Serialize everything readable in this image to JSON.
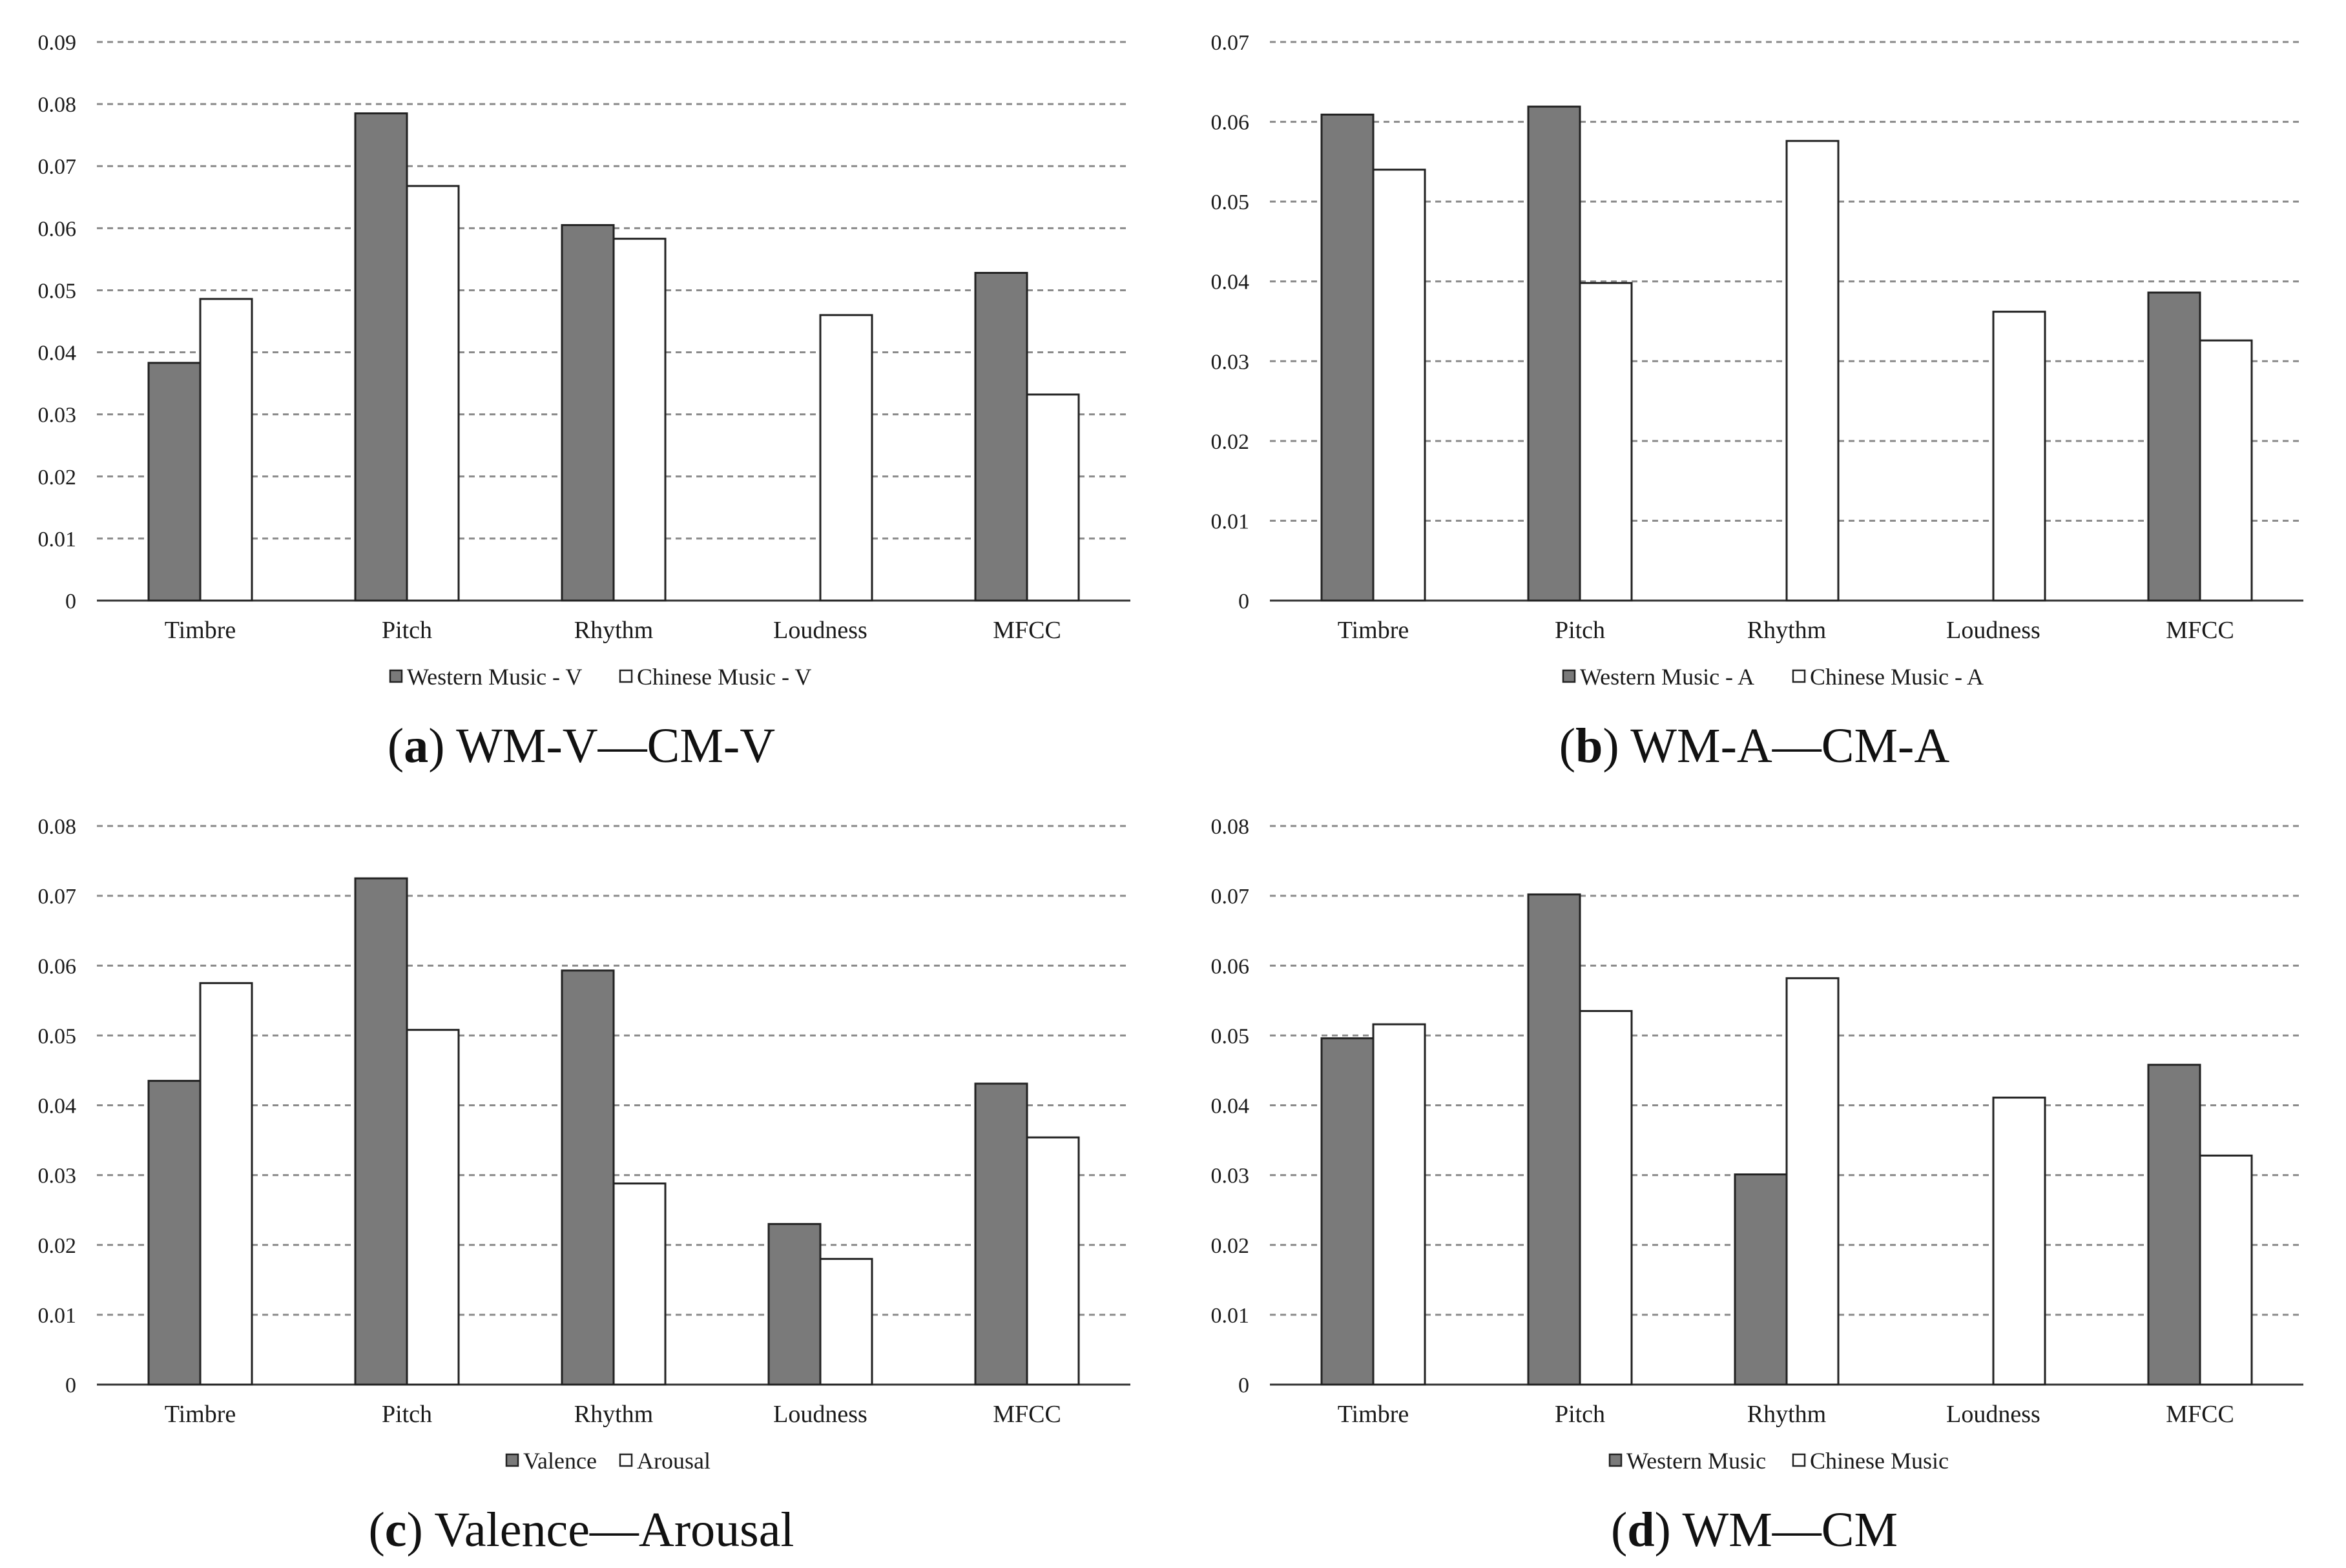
{
  "colors": {
    "dark_bar": "#7a7a7a",
    "light_bar": "#ffffff",
    "bar_stroke": "#222222"
  },
  "chart_data": [
    {
      "type": "bar",
      "caption": {
        "letter": "a",
        "text": "WM-V—CM-V"
      },
      "categories": [
        "Timbre",
        "Pitch",
        "Rhythm",
        "Loudness",
        "MFCC"
      ],
      "series": [
        {
          "name": "Western Music - V",
          "values": [
            0.0383,
            0.0785,
            0.0605,
            0,
            0.0528
          ]
        },
        {
          "name": "Chinese Music - V",
          "values": [
            0.0486,
            0.0668,
            0.0583,
            0.046,
            0.0332
          ]
        }
      ],
      "ylim": [
        0,
        0.09
      ],
      "yticks": [
        "0",
        "0.01",
        "0.02",
        "0.03",
        "0.04",
        "0.05",
        "0.06",
        "0.07",
        "0.08",
        "0.09"
      ],
      "grid": true,
      "legend_position": "bottom"
    },
    {
      "type": "bar",
      "caption": {
        "letter": "b",
        "text": "WM-A—CM-A"
      },
      "categories": [
        "Timbre",
        "Pitch",
        "Rhythm",
        "Loudness",
        "MFCC"
      ],
      "series": [
        {
          "name": "Western Music - A",
          "values": [
            0.0609,
            0.0619,
            0,
            0,
            0.0386
          ]
        },
        {
          "name": "Chinese Music - A",
          "values": [
            0.054,
            0.0398,
            0.0576,
            0.0362,
            0.0326
          ]
        }
      ],
      "ylim": [
        0,
        0.07
      ],
      "yticks": [
        "0",
        "0.01",
        "0.02",
        "0.03",
        "0.04",
        "0.05",
        "0.06",
        "0.07"
      ],
      "grid": true,
      "legend_position": "bottom"
    },
    {
      "type": "bar",
      "caption": {
        "letter": "c",
        "text": "Valence—Arousal"
      },
      "categories": [
        "Timbre",
        "Pitch",
        "Rhythm",
        "Loudness",
        "MFCC"
      ],
      "series": [
        {
          "name": "Valence",
          "values": [
            0.0435,
            0.0725,
            0.0593,
            0.023,
            0.0431
          ]
        },
        {
          "name": "Arousal",
          "values": [
            0.0575,
            0.0508,
            0.0288,
            0.018,
            0.0354
          ]
        }
      ],
      "ylim": [
        0,
        0.08
      ],
      "yticks": [
        "0",
        "0.01",
        "0.02",
        "0.03",
        "0.04",
        "0.05",
        "0.06",
        "0.07",
        "0.08"
      ],
      "grid": true,
      "legend_position": "bottom"
    },
    {
      "type": "bar",
      "caption": {
        "letter": "d",
        "text": "WM—CM"
      },
      "categories": [
        "Timbre",
        "Pitch",
        "Rhythm",
        "Loudness",
        "MFCC"
      ],
      "series": [
        {
          "name": "Western Music",
          "values": [
            0.0496,
            0.0702,
            0.0301,
            0,
            0.0458
          ]
        },
        {
          "name": "Chinese Music",
          "values": [
            0.0516,
            0.0535,
            0.0582,
            0.0411,
            0.0328
          ]
        }
      ],
      "ylim": [
        0,
        0.08
      ],
      "yticks": [
        "0",
        "0.01",
        "0.02",
        "0.03",
        "0.04",
        "0.05",
        "0.06",
        "0.07",
        "0.08"
      ],
      "grid": true,
      "legend_position": "bottom"
    }
  ]
}
